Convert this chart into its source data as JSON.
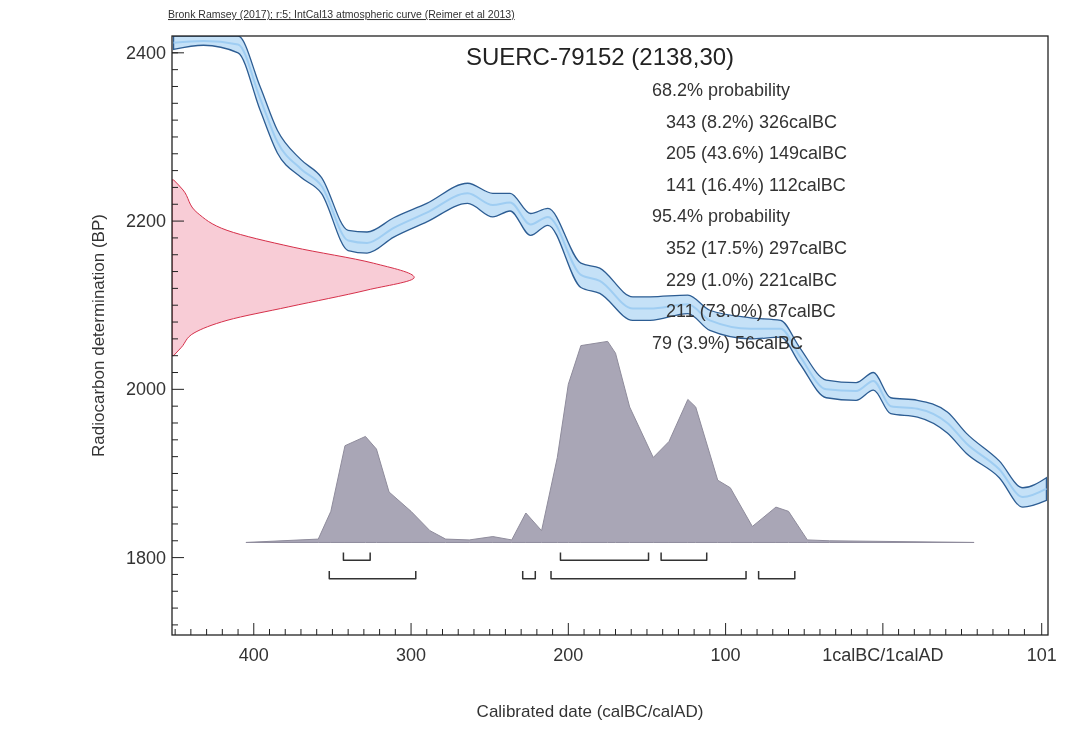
{
  "chart_data": {
    "type": "line",
    "title": "SUERC-79152 (2138,30)",
    "subtitle": "Bronk Ramsey (2017); r:5; IntCal13 atmospheric curve (Reimer et al 2013)",
    "xlabel": "Calibrated date (calBC/calAD)",
    "ylabel": "Radiocarbon determination (BP)",
    "annotations": [
      "68.2% probability",
      "343 (8.2%) 326calBC",
      "205 (43.6%) 149calBC",
      "141 (16.4%) 112calBC",
      "95.4% probability",
      "352 (17.5%) 297calBC",
      "229 (1.0%) 221calBC",
      "211 (73.0%) 87calBC",
      "79 (3.9%) 56calBC"
    ],
    "xlim": [
      -452,
      105
    ],
    "ylim": [
      1708,
      2420
    ],
    "xticks": [
      {
        "value": -400,
        "label": "400"
      },
      {
        "value": -300,
        "label": "300"
      },
      {
        "value": -200,
        "label": "200"
      },
      {
        "value": -100,
        "label": "100"
      },
      {
        "value": 0,
        "label": "1calBC/1calAD"
      },
      {
        "value": 101,
        "label": "101"
      },
      {
        "value": -450,
        "label": null
      },
      {
        "value": -440,
        "label": null
      },
      {
        "value": -430,
        "label": null
      },
      {
        "value": -420,
        "label": null
      },
      {
        "value": -410,
        "label": null
      },
      {
        "value": -390,
        "label": null
      },
      {
        "value": -380,
        "label": null
      },
      {
        "value": -370,
        "label": null
      },
      {
        "value": -360,
        "label": null
      },
      {
        "value": -350,
        "label": null
      },
      {
        "value": -340,
        "label": null
      },
      {
        "value": -330,
        "label": null
      },
      {
        "value": -320,
        "label": null
      },
      {
        "value": -310,
        "label": null
      },
      {
        "value": -290,
        "label": null
      },
      {
        "value": -280,
        "label": null
      },
      {
        "value": -270,
        "label": null
      },
      {
        "value": -260,
        "label": null
      },
      {
        "value": -250,
        "label": null
      },
      {
        "value": -240,
        "label": null
      },
      {
        "value": -230,
        "label": null
      },
      {
        "value": -220,
        "label": null
      },
      {
        "value": -210,
        "label": null
      },
      {
        "value": -190,
        "label": null
      },
      {
        "value": -180,
        "label": null
      },
      {
        "value": -170,
        "label": null
      },
      {
        "value": -160,
        "label": null
      },
      {
        "value": -150,
        "label": null
      },
      {
        "value": -140,
        "label": null
      },
      {
        "value": -130,
        "label": null
      },
      {
        "value": -120,
        "label": null
      },
      {
        "value": -110,
        "label": null
      },
      {
        "value": -90,
        "label": null
      },
      {
        "value": -80,
        "label": null
      },
      {
        "value": -70,
        "label": null
      },
      {
        "value": -60,
        "label": null
      },
      {
        "value": -50,
        "label": null
      },
      {
        "value": -40,
        "label": null
      },
      {
        "value": -30,
        "label": null
      },
      {
        "value": -20,
        "label": null
      },
      {
        "value": -10,
        "label": null
      },
      {
        "value": 10,
        "label": null
      },
      {
        "value": 20,
        "label": null
      },
      {
        "value": 30,
        "label": null
      },
      {
        "value": 40,
        "label": null
      },
      {
        "value": 50,
        "label": null
      },
      {
        "value": 60,
        "label": null
      },
      {
        "value": 70,
        "label": null
      },
      {
        "value": 80,
        "label": null
      },
      {
        "value": 90,
        "label": null
      }
    ],
    "yticks": [
      1800,
      2000,
      2200,
      2400,
      {
        "value": 1720,
        "label": null
      },
      {
        "value": 1740,
        "label": null
      },
      {
        "value": 1760,
        "label": null
      },
      {
        "value": 1780,
        "label": null
      },
      {
        "value": 1820,
        "label": null
      },
      {
        "value": 1840,
        "label": null
      },
      {
        "value": 1860,
        "label": null
      },
      {
        "value": 1880,
        "label": null
      },
      {
        "value": 1900,
        "label": null
      },
      {
        "value": 1920,
        "label": null
      },
      {
        "value": 1940,
        "label": null
      },
      {
        "value": 1960,
        "label": null
      },
      {
        "value": 1980,
        "label": null
      },
      {
        "value": 2020,
        "label": null
      },
      {
        "value": 2040,
        "label": null
      },
      {
        "value": 2060,
        "label": null
      },
      {
        "value": 2080,
        "label": null
      },
      {
        "value": 2100,
        "label": null
      },
      {
        "value": 2120,
        "label": null
      },
      {
        "value": 2140,
        "label": null
      },
      {
        "value": 2160,
        "label": null
      },
      {
        "value": 2180,
        "label": null
      },
      {
        "value": 2220,
        "label": null
      },
      {
        "value": 2240,
        "label": null
      },
      {
        "value": 2260,
        "label": null
      },
      {
        "value": 2280,
        "label": null
      },
      {
        "value": 2300,
        "label": null
      },
      {
        "value": 2320,
        "label": null
      },
      {
        "value": 2340,
        "label": null
      },
      {
        "value": 2360,
        "label": null
      },
      {
        "value": 2380,
        "label": null
      },
      {
        "value": 2400,
        "label": null
      }
    ],
    "series": [
      {
        "color": "#9fcdf2",
        "x": [
          -451,
          -432,
          -410,
          -396,
          -385,
          -370,
          -357,
          -340,
          -328,
          -311,
          -290,
          -264,
          -248,
          -237,
          -224,
          -213,
          -192,
          -180,
          -159,
          -148,
          -124,
          -110,
          -84,
          -65,
          -53,
          -36,
          -17,
          -6,
          5,
          22,
          41,
          53,
          74,
          89,
          104
        ],
        "values": [
          2412,
          2414,
          2410,
          2346,
          2294,
          2262,
          2242,
          2177,
          2174,
          2192,
          2210,
          2233,
          2219,
          2222,
          2196,
          2205,
          2136,
          2129,
          2096,
          2096,
          2101,
          2082,
          2072,
          2072,
          2040,
          2000,
          1998,
          2010,
          1980,
          1977,
          1960,
          1936,
          1905,
          1872,
          1882
        ],
        "upper": [
          2420,
          2420,
          2420,
          2360,
          2308,
          2273,
          2252,
          2189,
          2187,
          2204,
          2221,
          2245,
          2233,
          2233,
          2209,
          2215,
          2150,
          2144,
          2110,
          2110,
          2112,
          2094,
          2085,
          2082,
          2050,
          2011,
          2008,
          2020,
          1990,
          1987,
          1973,
          1948,
          1915,
          1883,
          1895
        ],
        "lower": [
          2404,
          2409,
          2400,
          2332,
          2281,
          2252,
          2233,
          2165,
          2162,
          2181,
          2199,
          2221,
          2205,
          2212,
          2183,
          2195,
          2121,
          2114,
          2082,
          2082,
          2090,
          2070,
          2060,
          2062,
          2031,
          1990,
          1987,
          1999,
          1971,
          1967,
          1948,
          1924,
          1895,
          1860,
          1868
        ]
      },
      {
        "type": "area",
        "color": "#f8ccd6",
        "x": [
          -451,
          -445,
          -436,
          -417,
          -375,
          -324,
          -298,
          -328,
          -378,
          -417,
          -438,
          -446,
          -451
        ],
        "values": [
          2249,
          2237,
          2210,
          2189,
          2169,
          2150,
          2133,
          2118,
          2098,
          2082,
          2067,
          2050,
          2040
        ]
      },
      {
        "type": "area",
        "color": "#a9a6b6",
        "x": [
          -405,
          -359,
          -351,
          -342,
          -329,
          -322,
          -314,
          -300,
          -288,
          -278,
          -263,
          -248,
          -236,
          -227,
          -217,
          -207,
          -200,
          -192,
          -175,
          -170,
          -161,
          -146,
          -136,
          -124,
          -119,
          -105,
          -97,
          -83,
          -68,
          -60,
          -48,
          -34,
          58
        ],
        "values": [
          1818,
          1822,
          1855,
          1933,
          1944,
          1929,
          1878,
          1855,
          1832,
          1822,
          1821,
          1825,
          1821,
          1853,
          1832,
          1919,
          2006,
          2052,
          2057,
          2043,
          1979,
          1919,
          1938,
          1988,
          1979,
          1892,
          1883,
          1837,
          1860,
          1855,
          1821,
          1820,
          1818
        ]
      },
      {
        "color": "#333333",
        "x": [
          -343,
          -343,
          -326,
          -326,
          null,
          -205,
          -205,
          -149,
          -149,
          null,
          -141,
          -141,
          -112,
          -112,
          null,
          -352,
          -352,
          -297,
          -297,
          null,
          -229,
          -229,
          -221,
          -221,
          null,
          -211,
          -211,
          -87,
          -87,
          null,
          -79,
          -79,
          -56,
          -56
        ],
        "values": [
          1806,
          1797,
          1797,
          1806,
          null,
          1806,
          1797,
          1797,
          1806,
          null,
          1806,
          1797,
          1797,
          1806,
          null,
          1784,
          1775,
          1775,
          1784,
          null,
          1784,
          1775,
          1775,
          1784,
          null,
          1784,
          1775,
          1775,
          1784,
          null,
          1784,
          1775,
          1775,
          1784
        ]
      }
    ]
  }
}
